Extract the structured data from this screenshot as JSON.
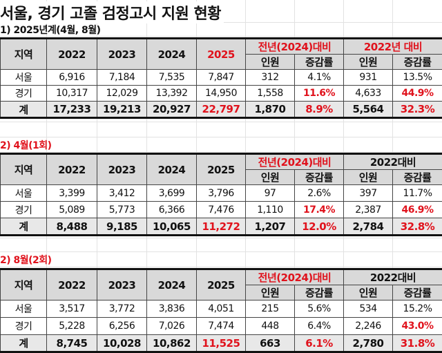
{
  "title": "서울, 경기 고졸 검정고시 지원 현황",
  "colors": {
    "accent_red": "#e0121c",
    "header_bg": "#d9d9d9",
    "total_bg": "#e8e8e8"
  },
  "tables": [
    {
      "subtitle": "1) 2025년계(4월, 8월)",
      "subtitle_red": false,
      "header": {
        "region": "지역",
        "years": [
          {
            "v": "2022",
            "red": false
          },
          {
            "v": "2023",
            "red": false
          },
          {
            "v": "2024",
            "red": false
          },
          {
            "v": "2025",
            "red": true
          }
        ],
        "group1": {
          "v": "전년(2024)대비",
          "red": true
        },
        "group2": {
          "v": "2022년 대비",
          "red": true
        },
        "sub": [
          "인원",
          "증감률",
          "인원",
          "증감률"
        ]
      },
      "rows": [
        {
          "region": "서울",
          "total": false,
          "cells": [
            {
              "v": "6,916"
            },
            {
              "v": "7,184"
            },
            {
              "v": "7,535"
            },
            {
              "v": "7,847"
            },
            {
              "v": "312"
            },
            {
              "v": "4.1%"
            },
            {
              "v": "931"
            },
            {
              "v": "13.5%"
            }
          ]
        },
        {
          "region": "경기",
          "total": false,
          "cells": [
            {
              "v": "10,317"
            },
            {
              "v": "12,029"
            },
            {
              "v": "13,392"
            },
            {
              "v": "14,950"
            },
            {
              "v": "1,558"
            },
            {
              "v": "11.6%",
              "red": true
            },
            {
              "v": "4,633"
            },
            {
              "v": "44.9%",
              "red": true
            }
          ]
        },
        {
          "region": "계",
          "total": true,
          "cells": [
            {
              "v": "17,233"
            },
            {
              "v": "19,213"
            },
            {
              "v": "20,927"
            },
            {
              "v": "22,797",
              "red": true
            },
            {
              "v": "1,870"
            },
            {
              "v": "8.9%",
              "red": true
            },
            {
              "v": "5,564"
            },
            {
              "v": "32.3%",
              "red": true
            }
          ]
        }
      ]
    },
    {
      "subtitle": "2) 4월(1회)",
      "subtitle_red": true,
      "header": {
        "region": "지역",
        "years": [
          {
            "v": "2022",
            "red": false
          },
          {
            "v": "2023",
            "red": false
          },
          {
            "v": "2024",
            "red": false
          },
          {
            "v": "2025",
            "red": false
          }
        ],
        "group1": {
          "v": "전년(2024)대비",
          "red": true
        },
        "group2": {
          "v": "2022대비",
          "red": false
        },
        "sub": [
          "인원",
          "증감률",
          "인원",
          "증감률"
        ]
      },
      "rows": [
        {
          "region": "서울",
          "total": false,
          "cells": [
            {
              "v": "3,399"
            },
            {
              "v": "3,412"
            },
            {
              "v": "3,699"
            },
            {
              "v": "3,796"
            },
            {
              "v": "97"
            },
            {
              "v": "2.6%"
            },
            {
              "v": "397"
            },
            {
              "v": "11.7%"
            }
          ]
        },
        {
          "region": "경기",
          "total": false,
          "cells": [
            {
              "v": "5,089"
            },
            {
              "v": "5,773"
            },
            {
              "v": "6,366"
            },
            {
              "v": "7,476"
            },
            {
              "v": "1,110"
            },
            {
              "v": "17.4%",
              "red": true
            },
            {
              "v": "2,387"
            },
            {
              "v": "46.9%",
              "red": true
            }
          ]
        },
        {
          "region": "계",
          "total": true,
          "cells": [
            {
              "v": "8,488"
            },
            {
              "v": "9,185"
            },
            {
              "v": "10,065"
            },
            {
              "v": "11,272",
              "red": true
            },
            {
              "v": "1,207"
            },
            {
              "v": "12.0%",
              "red": true
            },
            {
              "v": "2,784"
            },
            {
              "v": "32.8%",
              "red": true
            }
          ]
        }
      ]
    },
    {
      "subtitle": "2) 8월(2회)",
      "subtitle_red": true,
      "header": {
        "region": "지역",
        "years": [
          {
            "v": "2022",
            "red": false
          },
          {
            "v": "2023",
            "red": false
          },
          {
            "v": "2024",
            "red": false
          },
          {
            "v": "2025",
            "red": false
          }
        ],
        "group1": {
          "v": "전년(2024)대비",
          "red": true
        },
        "group2": {
          "v": "2022대비",
          "red": false
        },
        "sub": [
          "인원",
          "증감률",
          "인원",
          "증감률"
        ]
      },
      "rows": [
        {
          "region": "서울",
          "total": false,
          "cells": [
            {
              "v": "3,517"
            },
            {
              "v": "3,772"
            },
            {
              "v": "3,836"
            },
            {
              "v": "4,051"
            },
            {
              "v": "215"
            },
            {
              "v": "5.6%"
            },
            {
              "v": "534"
            },
            {
              "v": "15.2%"
            }
          ]
        },
        {
          "region": "경기",
          "total": false,
          "cells": [
            {
              "v": "5,228"
            },
            {
              "v": "6,256"
            },
            {
              "v": "7,026"
            },
            {
              "v": "7,474"
            },
            {
              "v": "448"
            },
            {
              "v": "6.4%"
            },
            {
              "v": "2,246"
            },
            {
              "v": "43.0%",
              "red": true
            }
          ]
        },
        {
          "region": "계",
          "total": true,
          "cells": [
            {
              "v": "8,745"
            },
            {
              "v": "10,028"
            },
            {
              "v": "10,862"
            },
            {
              "v": "11,525",
              "red": true
            },
            {
              "v": "663"
            },
            {
              "v": "6.1%",
              "red": true
            },
            {
              "v": "2,780"
            },
            {
              "v": "31.8%",
              "red": true
            }
          ]
        }
      ]
    }
  ]
}
